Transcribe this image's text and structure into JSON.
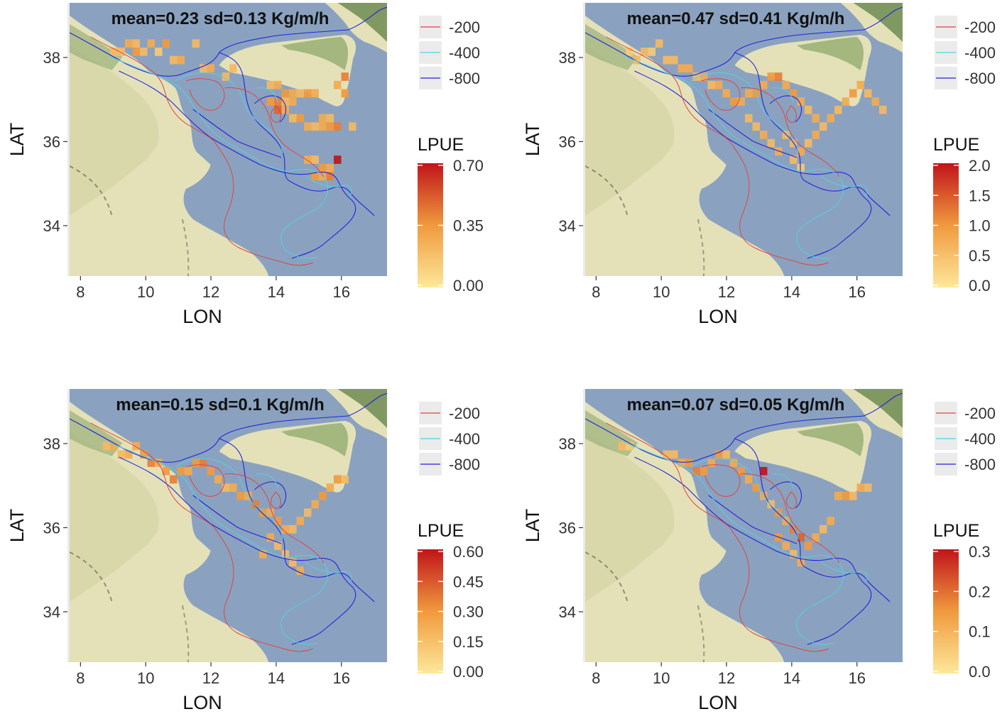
{
  "colors": {
    "sea": "#8aa2c0",
    "land": "#e4e1b9",
    "land_dark": "#b9c38c",
    "mountain": "#6f8b52",
    "contour_200": "#e0443c",
    "contour_400": "#4fd3e6",
    "contour_800": "#2222dd",
    "grad_low": "#fde89a",
    "grad_mid": "#f09a3e",
    "grad_high": "#c0141a"
  },
  "axes": {
    "x_title": "LON",
    "y_title": "LAT",
    "x_ticks": [
      "8",
      "10",
      "12",
      "14",
      "16"
    ],
    "y_ticks": [
      "34",
      "36",
      "38"
    ],
    "x_range": [
      7.6,
      17.4
    ],
    "y_range": [
      32.8,
      39.3
    ]
  },
  "contour_legend": {
    "items": [
      {
        "label": "-200",
        "color": "#e0443c"
      },
      {
        "label": "-400",
        "color": "#4fd3e6"
      },
      {
        "label": "-800",
        "color": "#2222dd"
      }
    ]
  },
  "panels": [
    {
      "title": "mean=0.23 sd=0.13 Kg/m/h",
      "legend_title": "LPUE",
      "legend_ticks": [
        "0.00",
        "0.35",
        "0.70"
      ],
      "legend_max": 0.7
    },
    {
      "title": "mean=0.47 sd=0.41 Kg/m/h",
      "legend_title": "LPUE",
      "legend_ticks": [
        "0.0",
        "0.5",
        "1.0",
        "1.5",
        "2.0"
      ],
      "legend_max": 2.0
    },
    {
      "title": "mean=0.15 sd=0.1 Kg/m/h",
      "legend_title": "LPUE",
      "legend_ticks": [
        "0.00",
        "0.15",
        "0.30",
        "0.45",
        "0.60"
      ],
      "legend_max": 0.6
    },
    {
      "title": "mean=0.07 sd=0.05 Kg/m/h",
      "legend_title": "LPUE",
      "legend_ticks": [
        "0.0",
        "0.1",
        "0.2",
        "0.3"
      ],
      "legend_max": 0.3
    }
  ]
}
